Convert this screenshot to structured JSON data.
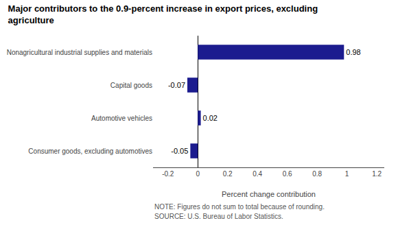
{
  "chart_data": {
    "type": "bar",
    "orientation": "horizontal",
    "title": "Major contributors to the 0.9-percent increase in export prices, excluding\nagriculture",
    "categories": [
      "Consumer goods, excluding automotives",
      "Automotive vehicles",
      "Capital goods",
      "Nonagricultural industrial supplies and materials"
    ],
    "values": [
      -0.05,
      0.02,
      -0.07,
      0.98
    ],
    "color": "#1c1c8f",
    "xlim": [
      -0.3,
      1.25
    ],
    "xticks": [
      -0.2,
      0,
      0.2,
      0.4,
      0.6,
      0.8,
      1,
      1.2
    ],
    "xlabel": "Percent change contribution",
    "data_labels": true,
    "grid": false,
    "annotations": [
      "NOTE: Figures do not sum to total because of rounding.",
      "SOURCE: U.S. Bureau of Labor Statistics."
    ]
  }
}
